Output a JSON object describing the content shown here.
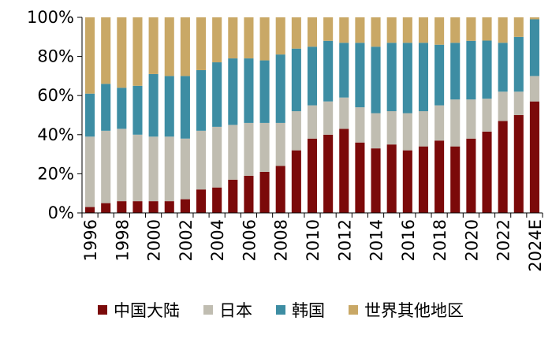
{
  "chart_data": {
    "type": "bar",
    "stacked": true,
    "percent": true,
    "title": "",
    "xlabel": "",
    "ylabel": "",
    "ylim": [
      0,
      100
    ],
    "yticks": [
      "0%",
      "20%",
      "40%",
      "60%",
      "80%",
      "100%"
    ],
    "ytick_values": [
      0,
      20,
      40,
      60,
      80,
      100
    ],
    "categories": [
      "1996",
      "1997",
      "1998",
      "1999",
      "2000",
      "2001",
      "2002",
      "2003",
      "2004",
      "2005",
      "2006",
      "2007",
      "2008",
      "2009",
      "2010",
      "2011",
      "2012",
      "2013",
      "2014",
      "2015",
      "2016",
      "2017",
      "2018",
      "2019",
      "2020",
      "2021",
      "2022",
      "2023",
      "2024E"
    ],
    "xtick_labels": [
      "1996",
      "",
      "1998",
      "",
      "2000",
      "",
      "2002",
      "",
      "2004",
      "",
      "2006",
      "",
      "2008",
      "",
      "2010",
      "",
      "2012",
      "",
      "2014",
      "",
      "2016",
      "",
      "2018",
      "",
      "2020",
      "",
      "2022",
      "",
      "2024E"
    ],
    "legend_position": "bottom",
    "series": [
      {
        "name": "中国大陆",
        "color": "#7b0a0a",
        "values": [
          3,
          5,
          6,
          6,
          6,
          6,
          7,
          12,
          13,
          17,
          19,
          21,
          24,
          32,
          38,
          40,
          43,
          36,
          33,
          35,
          32,
          34,
          37,
          34,
          38,
          42,
          47,
          50,
          57
        ]
      },
      {
        "name": "日本",
        "color": "#c0bdb1",
        "values": [
          36,
          37,
          37,
          34,
          33,
          33,
          31,
          30,
          31,
          28,
          27,
          25,
          22,
          20,
          17,
          17,
          16,
          18,
          18,
          17,
          19,
          18,
          18,
          24,
          20,
          17,
          15,
          12,
          13
        ]
      },
      {
        "name": "韩国",
        "color": "#3d8da3",
        "values": [
          22,
          24,
          21,
          25,
          32,
          31,
          32,
          31,
          33,
          34,
          33,
          32,
          35,
          32,
          30,
          31,
          28,
          33,
          34,
          35,
          36,
          35,
          31,
          29,
          30,
          30,
          25,
          28,
          29
        ]
      },
      {
        "name": "世界其他地区",
        "color": "#c9a866",
        "values": [
          39,
          34,
          36,
          35,
          29,
          30,
          30,
          27,
          23,
          21,
          21,
          22,
          19,
          16,
          15,
          12,
          13,
          13,
          15,
          13,
          13,
          13,
          14,
          13,
          12,
          12,
          13,
          10,
          1
        ]
      }
    ]
  }
}
